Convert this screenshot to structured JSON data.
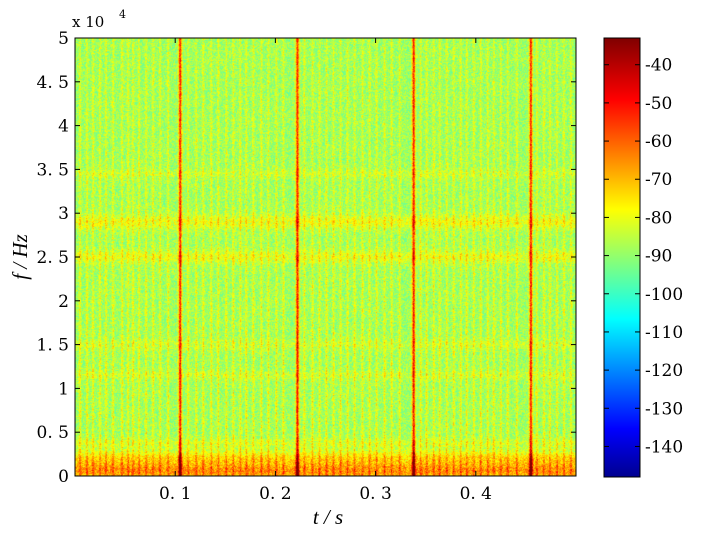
{
  "chart_data": {
    "type": "heatmap",
    "title": "",
    "xlabel": "t / s",
    "ylabel": "f / Hz",
    "x_range": [
      0,
      0.5
    ],
    "y_range": [
      0,
      50000
    ],
    "x_ticks": [
      {
        "value": 0.1,
        "label": "0. 1"
      },
      {
        "value": 0.2,
        "label": "0. 2"
      },
      {
        "value": 0.3,
        "label": "0. 3"
      },
      {
        "value": 0.4,
        "label": "0. 4"
      }
    ],
    "y_ticks": [
      {
        "value": 0,
        "label": "0"
      },
      {
        "value": 5000,
        "label": "0. 5"
      },
      {
        "value": 10000,
        "label": "1"
      },
      {
        "value": 15000,
        "label": "1. 5"
      },
      {
        "value": 20000,
        "label": "2"
      },
      {
        "value": 25000,
        "label": "2. 5"
      },
      {
        "value": 30000,
        "label": "3"
      },
      {
        "value": 35000,
        "label": "3. 5"
      },
      {
        "value": 40000,
        "label": "4"
      },
      {
        "value": 45000,
        "label": "4. 5"
      },
      {
        "value": 50000,
        "label": "5"
      }
    ],
    "y_exponent": {
      "base": "x  10",
      "power": "4"
    },
    "colorbar": {
      "range": [
        -148,
        -33
      ],
      "colormap": "jet",
      "ticks": [
        {
          "value": -40,
          "label": "-40"
        },
        {
          "value": -50,
          "label": "-50"
        },
        {
          "value": -60,
          "label": "-60"
        },
        {
          "value": -70,
          "label": "-70"
        },
        {
          "value": -80,
          "label": "-80"
        },
        {
          "value": -90,
          "label": "-90"
        },
        {
          "value": -100,
          "label": "-100"
        },
        {
          "value": -110,
          "label": "-110"
        },
        {
          "value": -120,
          "label": "-120"
        },
        {
          "value": -130,
          "label": "-130"
        },
        {
          "value": -140,
          "label": "-140"
        }
      ]
    },
    "background_level_db": -87,
    "harmonic_bands_hz": [
      {
        "center": 29000,
        "width": 800,
        "boost_db": 10
      },
      {
        "center": 25000,
        "width": 700,
        "boost_db": 9
      },
      {
        "center": 34500,
        "width": 500,
        "boost_db": 5
      },
      {
        "center": 15000,
        "width": 600,
        "boost_db": 5
      },
      {
        "center": 11500,
        "width": 500,
        "boost_db": 5
      },
      {
        "center": 3800,
        "width": 500,
        "boost_db": 6
      },
      {
        "center": 2000,
        "width": 800,
        "boost_db": 12
      },
      {
        "center": 600,
        "width": 900,
        "boost_db": 20
      }
    ],
    "strong_impulses_s": [
      0.105,
      0.222,
      0.338,
      0.455
    ],
    "impulse_times_s": [
      0.005,
      0.012,
      0.018,
      0.025,
      0.031,
      0.038,
      0.047,
      0.053,
      0.058,
      0.064,
      0.071,
      0.078,
      0.085,
      0.093,
      0.105,
      0.113,
      0.121,
      0.128,
      0.136,
      0.143,
      0.151,
      0.158,
      0.165,
      0.171,
      0.178,
      0.186,
      0.193,
      0.201,
      0.208,
      0.222,
      0.229,
      0.237,
      0.244,
      0.251,
      0.258,
      0.265,
      0.272,
      0.279,
      0.287,
      0.294,
      0.301,
      0.309,
      0.316,
      0.324,
      0.338,
      0.345,
      0.351,
      0.358,
      0.364,
      0.371,
      0.378,
      0.385,
      0.391,
      0.398,
      0.405,
      0.412,
      0.418,
      0.425,
      0.432,
      0.441,
      0.455,
      0.461,
      0.468,
      0.474,
      0.481,
      0.488,
      0.495
    ]
  }
}
